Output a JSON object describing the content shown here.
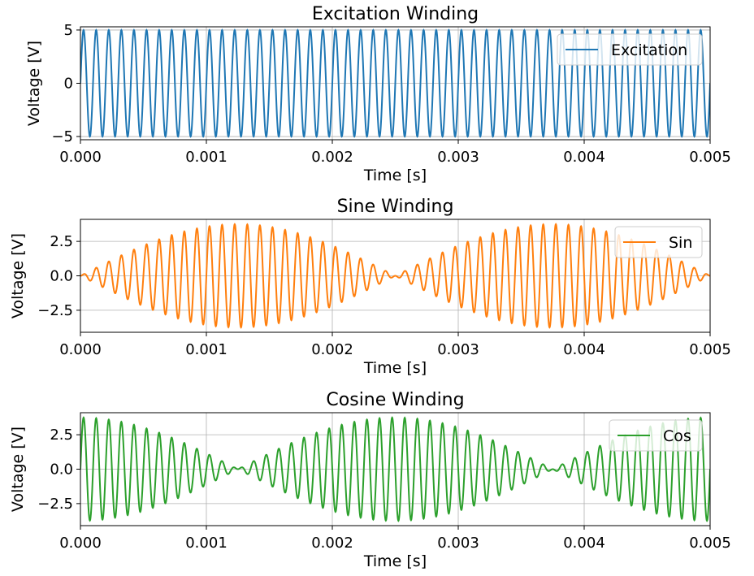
{
  "chart_data": [
    {
      "type": "line",
      "title": "Excitation Winding",
      "xlabel": "Time [s]",
      "ylabel": "Voltage [V]",
      "xlim": [
        0,
        0.005
      ],
      "ylim": [
        -5.3,
        5.3
      ],
      "xticks": [
        "0.000",
        "0.001",
        "0.002",
        "0.003",
        "0.004",
        "0.005"
      ],
      "yticks": [
        -5,
        0,
        5
      ],
      "ytick_labels": [
        "−5",
        "0",
        "5"
      ],
      "grid": true,
      "legend_position": "top-right",
      "series": [
        {
          "name": "Excitation",
          "color": "#1f77b4",
          "waveform": "amplitude * sin(2*pi*carrier_hz*t)",
          "amplitude": 5,
          "carrier_hz": 10000
        }
      ]
    },
    {
      "type": "line",
      "title": "Sine Winding",
      "xlabel": "Time [s]",
      "ylabel": "Voltage [V]",
      "xlim": [
        0,
        0.005
      ],
      "ylim": [
        -4.1,
        4.1
      ],
      "xticks": [
        "0.000",
        "0.001",
        "0.002",
        "0.003",
        "0.004",
        "0.005"
      ],
      "yticks": [
        -2.5,
        0,
        2.5
      ],
      "ytick_labels": [
        "−2.5",
        "0.0",
        "2.5"
      ],
      "grid": true,
      "legend_position": "top-right",
      "series": [
        {
          "name": "Sin",
          "color": "#ff7f0e",
          "waveform": "amplitude * sin(2*pi*carrier_hz*t) * sin(2*pi*envelope_hz*t)",
          "amplitude": 3.75,
          "carrier_hz": 10000,
          "envelope_hz": 200
        }
      ]
    },
    {
      "type": "line",
      "title": "Cosine Winding",
      "xlabel": "Time [s]",
      "ylabel": "Voltage [V]",
      "xlim": [
        0,
        0.005
      ],
      "ylim": [
        -4.1,
        4.1
      ],
      "xticks": [
        "0.000",
        "0.001",
        "0.002",
        "0.003",
        "0.004",
        "0.005"
      ],
      "yticks": [
        -2.5,
        0,
        2.5
      ],
      "ytick_labels": [
        "−2.5",
        "0.0",
        "2.5"
      ],
      "grid": true,
      "legend_position": "top-right",
      "series": [
        {
          "name": "Cos",
          "color": "#2ca02c",
          "waveform": "amplitude * sin(2*pi*carrier_hz*t) * cos(2*pi*envelope_hz*t)",
          "amplitude": 3.75,
          "carrier_hz": 10000,
          "envelope_hz": 200
        }
      ]
    }
  ]
}
